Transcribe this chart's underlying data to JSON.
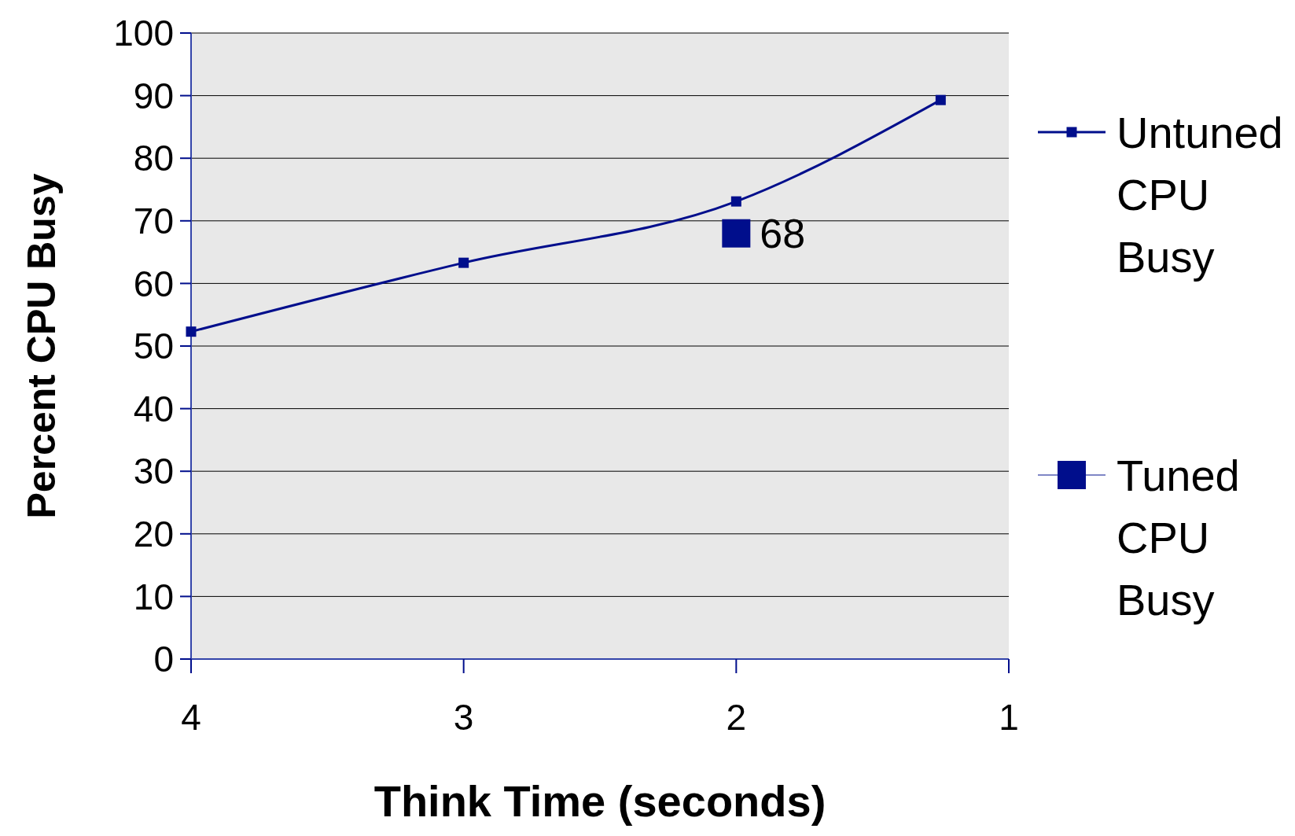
{
  "chart_data": {
    "type": "line",
    "xlabel": "Think Time (seconds)",
    "ylabel": "Percent CPU Busy",
    "xlim": [
      4,
      1
    ],
    "xticks": [
      4,
      3,
      2,
      1
    ],
    "ylim": [
      0,
      100
    ],
    "yticks": [
      0,
      10,
      20,
      30,
      40,
      50,
      60,
      70,
      80,
      90,
      100
    ],
    "series": [
      {
        "name": "Untuned CPU Busy",
        "color": "#000e8c",
        "x": [
          4,
          3,
          2,
          1.25
        ],
        "values": [
          52.3,
          63.3,
          73.1,
          89.3
        ]
      },
      {
        "name": "Tuned CPU Busy",
        "type": "scatter",
        "color": "#000e8c",
        "x": [
          2
        ],
        "values": [
          68
        ],
        "value_labels": [
          "68"
        ]
      }
    ],
    "grid": "y",
    "legend": "right",
    "marker": "square",
    "line_style": "solid"
  }
}
